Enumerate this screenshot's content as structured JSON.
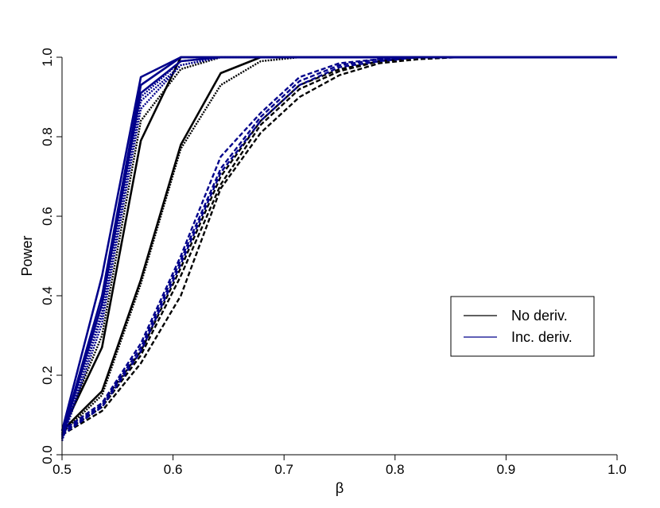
{
  "chart_data": {
    "type": "line",
    "title": "",
    "xlabel": "β",
    "ylabel": "Power",
    "xlim": [
      0.5,
      1.0
    ],
    "ylim": [
      0.0,
      1.0
    ],
    "xticks": [
      0.5,
      0.6,
      0.7,
      0.8,
      0.9,
      1.0
    ],
    "xtick_labels": [
      "0.5",
      "0.6",
      "0.7",
      "0.8",
      "0.9",
      "1.0"
    ],
    "yticks": [
      0.0,
      0.2,
      0.4,
      0.6,
      0.8,
      1.0
    ],
    "ytick_labels": [
      "0.0",
      "0.2",
      "0.4",
      "0.6",
      "0.8",
      "1.0"
    ],
    "grid": false,
    "legend": {
      "position": "right",
      "entries": [
        {
          "label": "No deriv.",
          "color": "#000000"
        },
        {
          "label": "Inc. deriv.",
          "color": "#00008B"
        }
      ]
    },
    "x": [
      0.5,
      0.536,
      0.571,
      0.607,
      0.643,
      0.679,
      0.714,
      0.75,
      0.786,
      0.821,
      0.857,
      0.893,
      0.929,
      0.964,
      1.0
    ],
    "series": [
      {
        "color": "#000000",
        "style": "solid",
        "values": [
          0.06,
          0.16,
          0.44,
          0.78,
          0.96,
          1.0,
          1.0,
          1.0,
          1.0,
          1.0,
          1.0,
          1.0,
          1.0,
          1.0,
          1.0
        ]
      },
      {
        "color": "#000000",
        "style": "dotted",
        "values": [
          0.055,
          0.15,
          0.43,
          0.77,
          0.93,
          0.99,
          1.0,
          1.0,
          1.0,
          1.0,
          1.0,
          1.0,
          1.0,
          1.0,
          1.0
        ]
      },
      {
        "color": "#000000",
        "style": "solid",
        "values": [
          0.06,
          0.27,
          0.79,
          1.0,
          1.0,
          1.0,
          1.0,
          1.0,
          1.0,
          1.0,
          1.0,
          1.0,
          1.0,
          1.0,
          1.0
        ]
      },
      {
        "color": "#000000",
        "style": "dotted",
        "values": [
          0.055,
          0.3,
          0.84,
          0.97,
          1.0,
          1.0,
          1.0,
          1.0,
          1.0,
          1.0,
          1.0,
          1.0,
          1.0,
          1.0,
          1.0
        ]
      },
      {
        "color": "#000000",
        "style": "dashed",
        "values": [
          0.05,
          0.11,
          0.23,
          0.4,
          0.67,
          0.81,
          0.9,
          0.955,
          0.985,
          0.995,
          1.0,
          1.0,
          1.0,
          1.0,
          1.0
        ]
      },
      {
        "color": "#000000",
        "style": "dashed",
        "values": [
          0.055,
          0.12,
          0.25,
          0.45,
          0.68,
          0.83,
          0.92,
          0.965,
          0.99,
          1.0,
          1.0,
          1.0,
          1.0,
          1.0,
          1.0
        ]
      },
      {
        "color": "#000000",
        "style": "dashed",
        "values": [
          0.06,
          0.13,
          0.26,
          0.47,
          0.7,
          0.84,
          0.93,
          0.97,
          0.99,
          1.0,
          1.0,
          1.0,
          1.0,
          1.0,
          1.0
        ]
      },
      {
        "color": "#00008B",
        "style": "solid",
        "values": [
          0.06,
          0.45,
          0.95,
          1.0,
          1.0,
          1.0,
          1.0,
          1.0,
          1.0,
          1.0,
          1.0,
          1.0,
          1.0,
          1.0,
          1.0
        ]
      },
      {
        "color": "#00008B",
        "style": "solid",
        "values": [
          0.05,
          0.4,
          0.93,
          1.0,
          1.0,
          1.0,
          1.0,
          1.0,
          1.0,
          1.0,
          1.0,
          1.0,
          1.0,
          1.0,
          1.0
        ]
      },
      {
        "color": "#00008B",
        "style": "solid",
        "values": [
          0.045,
          0.38,
          0.91,
          0.99,
          1.0,
          1.0,
          1.0,
          1.0,
          1.0,
          1.0,
          1.0,
          1.0,
          1.0,
          1.0,
          1.0
        ]
      },
      {
        "color": "#00008B",
        "style": "dotted",
        "values": [
          0.04,
          0.36,
          0.9,
          0.99,
          1.0,
          1.0,
          1.0,
          1.0,
          1.0,
          1.0,
          1.0,
          1.0,
          1.0,
          1.0,
          1.0
        ]
      },
      {
        "color": "#00008B",
        "style": "dotted",
        "values": [
          0.04,
          0.35,
          0.89,
          0.98,
          1.0,
          1.0,
          1.0,
          1.0,
          1.0,
          1.0,
          1.0,
          1.0,
          1.0,
          1.0,
          1.0
        ]
      },
      {
        "color": "#00008B",
        "style": "dotted",
        "values": [
          0.035,
          0.33,
          0.87,
          0.98,
          1.0,
          1.0,
          1.0,
          1.0,
          1.0,
          1.0,
          1.0,
          1.0,
          1.0,
          1.0,
          1.0
        ]
      },
      {
        "color": "#00008B",
        "style": "dashed",
        "values": [
          0.06,
          0.13,
          0.28,
          0.5,
          0.75,
          0.86,
          0.95,
          0.985,
          0.995,
          1.0,
          1.0,
          1.0,
          1.0,
          1.0,
          1.0
        ]
      },
      {
        "color": "#00008B",
        "style": "dashed",
        "values": [
          0.055,
          0.125,
          0.27,
          0.49,
          0.72,
          0.85,
          0.94,
          0.98,
          0.995,
          1.0,
          1.0,
          1.0,
          1.0,
          1.0,
          1.0
        ]
      },
      {
        "color": "#00008B",
        "style": "dashed",
        "values": [
          0.05,
          0.12,
          0.26,
          0.48,
          0.71,
          0.84,
          0.93,
          0.975,
          0.99,
          1.0,
          1.0,
          1.0,
          1.0,
          1.0,
          1.0
        ]
      }
    ]
  }
}
